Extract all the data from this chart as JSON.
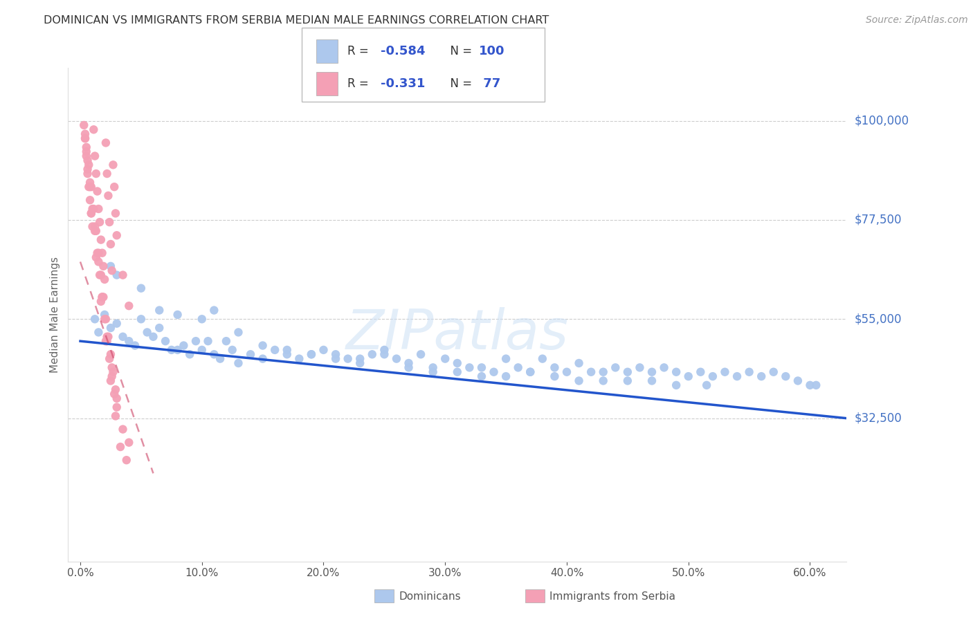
{
  "title": "DOMINICAN VS IMMIGRANTS FROM SERBIA MEDIAN MALE EARNINGS CORRELATION CHART",
  "source": "Source: ZipAtlas.com",
  "xlabel_ticks": [
    "0.0%",
    "10.0%",
    "20.0%",
    "30.0%",
    "40.0%",
    "50.0%",
    "60.0%"
  ],
  "xlabel_vals": [
    0.0,
    10.0,
    20.0,
    30.0,
    40.0,
    50.0,
    60.0
  ],
  "ylabel": "Median Male Earnings",
  "ymin": 0,
  "ymax": 112000,
  "xmin": -1.0,
  "xmax": 63.0,
  "dominicans_color": "#adc8ed",
  "serbia_color": "#f4a0b5",
  "trend_blue_color": "#2255cc",
  "trend_pink_color": "#cc4466",
  "legend_label1": "Dominicans",
  "legend_label2": "Immigrants from Serbia",
  "watermark": "ZIPatlas",
  "ytick_positions": [
    32500,
    55000,
    77500,
    100000
  ],
  "ytick_labels": [
    "$32,500",
    "$55,000",
    "$77,500",
    "$100,000"
  ],
  "grid_color": "#cccccc",
  "dominicans_x": [
    1.2,
    1.5,
    2.0,
    2.5,
    3.0,
    3.5,
    4.0,
    4.5,
    5.0,
    5.5,
    6.0,
    6.5,
    7.0,
    7.5,
    8.0,
    8.5,
    9.0,
    9.5,
    10.0,
    10.5,
    11.0,
    11.5,
    12.0,
    12.5,
    13.0,
    14.0,
    15.0,
    16.0,
    17.0,
    18.0,
    19.0,
    20.0,
    21.0,
    22.0,
    23.0,
    24.0,
    25.0,
    26.0,
    27.0,
    28.0,
    29.0,
    30.0,
    31.0,
    32.0,
    33.0,
    34.0,
    35.0,
    36.0,
    37.0,
    38.0,
    39.0,
    40.0,
    41.0,
    42.0,
    43.0,
    44.0,
    45.0,
    46.0,
    47.0,
    48.0,
    49.0,
    50.0,
    51.0,
    52.0,
    53.0,
    54.0,
    55.0,
    56.0,
    57.0,
    58.0,
    59.0,
    60.0,
    2.5,
    3.0,
    5.0,
    6.5,
    8.0,
    10.0,
    11.0,
    13.0,
    15.0,
    17.0,
    19.0,
    21.0,
    23.0,
    25.0,
    27.0,
    29.0,
    31.0,
    33.0,
    35.0,
    37.0,
    39.0,
    41.0,
    43.0,
    45.0,
    47.0,
    49.0,
    51.5,
    60.5
  ],
  "dominicans_y": [
    55000,
    52000,
    56000,
    53000,
    54000,
    51000,
    50000,
    49000,
    55000,
    52000,
    51000,
    53000,
    50000,
    48000,
    48000,
    49000,
    47000,
    50000,
    48000,
    50000,
    47000,
    46000,
    50000,
    48000,
    45000,
    47000,
    46000,
    48000,
    47000,
    46000,
    47000,
    48000,
    47000,
    46000,
    46000,
    47000,
    48000,
    46000,
    45000,
    47000,
    44000,
    46000,
    45000,
    44000,
    44000,
    43000,
    46000,
    44000,
    43000,
    46000,
    44000,
    43000,
    45000,
    43000,
    43000,
    44000,
    43000,
    44000,
    43000,
    44000,
    43000,
    42000,
    43000,
    42000,
    43000,
    42000,
    43000,
    42000,
    43000,
    42000,
    41000,
    40000,
    67000,
    65000,
    62000,
    57000,
    56000,
    55000,
    57000,
    52000,
    49000,
    48000,
    47000,
    46000,
    45000,
    47000,
    44000,
    43000,
    43000,
    42000,
    42000,
    43000,
    42000,
    41000,
    41000,
    41000,
    41000,
    40000,
    40000,
    40000
  ],
  "serbia_x": [
    0.3,
    0.4,
    0.5,
    0.6,
    0.7,
    0.8,
    0.9,
    1.0,
    1.1,
    1.2,
    1.3,
    1.4,
    1.5,
    1.6,
    1.7,
    1.8,
    1.9,
    2.0,
    2.1,
    2.2,
    2.3,
    2.4,
    2.5,
    2.6,
    2.7,
    2.8,
    2.9,
    3.0,
    3.5,
    4.0,
    0.5,
    0.7,
    0.9,
    1.1,
    1.3,
    1.5,
    1.7,
    1.9,
    2.1,
    2.3,
    2.5,
    2.7,
    2.9,
    0.4,
    0.6,
    0.8,
    1.0,
    1.2,
    1.4,
    1.6,
    1.8,
    2.0,
    2.2,
    2.4,
    2.6,
    2.8,
    3.0,
    3.5,
    4.0,
    0.5,
    0.8,
    1.2,
    1.5,
    1.8,
    2.2,
    2.6,
    3.0,
    0.4,
    0.6,
    0.9,
    1.3,
    1.7,
    2.1,
    2.5,
    2.9,
    3.3,
    3.8
  ],
  "serbia_y": [
    99000,
    96000,
    92000,
    89000,
    85000,
    82000,
    79000,
    76000,
    98000,
    92000,
    88000,
    84000,
    80000,
    77000,
    73000,
    70000,
    67000,
    64000,
    95000,
    88000,
    83000,
    77000,
    72000,
    66000,
    90000,
    85000,
    79000,
    74000,
    65000,
    58000,
    94000,
    90000,
    85000,
    80000,
    75000,
    70000,
    65000,
    60000,
    55000,
    51000,
    47000,
    43000,
    39000,
    97000,
    91000,
    86000,
    80000,
    75000,
    70000,
    65000,
    60000,
    55000,
    50000,
    46000,
    42000,
    38000,
    35000,
    30000,
    27000,
    93000,
    85000,
    76000,
    68000,
    60000,
    51000,
    44000,
    37000,
    96000,
    88000,
    79000,
    69000,
    59000,
    50000,
    41000,
    33000,
    26000,
    23000
  ]
}
